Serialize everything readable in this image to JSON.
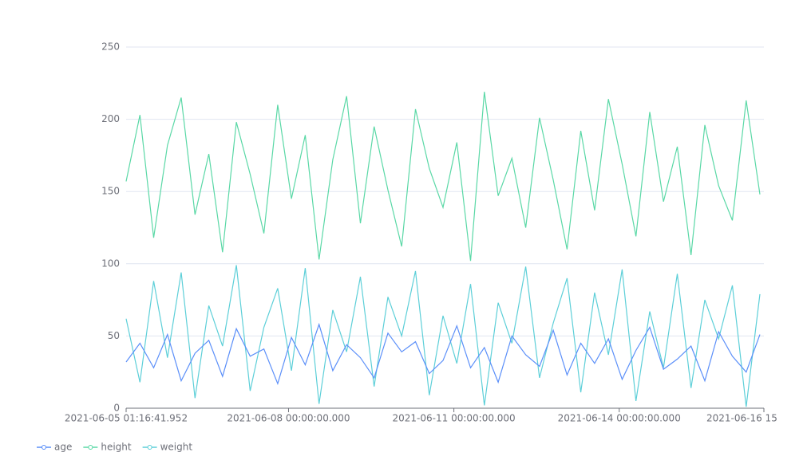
{
  "chart_data": {
    "type": "line",
    "x": [
      1622855801952,
      1622877401952,
      1622899001952,
      1622920601952,
      1622942201952,
      1622963801952,
      1622985401952,
      1623007001952,
      1623028601952,
      1623050201952,
      1623071801952,
      1623093401952,
      1623115001952,
      1623136601952,
      1623158201952,
      1623179801952,
      1623201401952,
      1623223001952,
      1623244601952,
      1623266201952,
      1623287801952,
      1623309401952,
      1623331001952,
      1623352601952,
      1623374201952,
      1623395801952,
      1623417401952,
      1623439001952,
      1623460601952,
      1623482201952,
      1623503801952,
      1623525401952,
      1623547001952,
      1623568601952,
      1623590201952,
      1623611801952,
      1623633401952,
      1623655001952,
      1623676601952,
      1623698201952,
      1623719801952,
      1623741401952,
      1623763001952,
      1623784601952,
      1623806201952,
      1623827801952,
      1623849401952
    ],
    "series": [
      {
        "name": "age",
        "color": "#5b8ff9",
        "values": [
          32,
          45,
          28,
          51,
          19,
          38,
          47,
          22,
          55,
          36,
          41,
          17,
          49,
          30,
          58,
          26,
          44,
          35,
          21,
          52,
          39,
          46,
          24,
          33,
          57,
          28,
          42,
          18,
          50,
          37,
          29,
          54,
          23,
          45,
          31,
          48,
          20,
          40,
          56,
          27,
          34,
          43,
          19,
          53,
          36,
          25,
          51
        ]
      },
      {
        "name": "height",
        "color": "#5ad8a6",
        "values": [
          157,
          203,
          118,
          182,
          215,
          134,
          176,
          108,
          198,
          162,
          121,
          210,
          145,
          189,
          103,
          172,
          216,
          128,
          195,
          151,
          112,
          207,
          166,
          139,
          184,
          102,
          219,
          147,
          173,
          125,
          201,
          158,
          110,
          192,
          137,
          214,
          169,
          119,
          205,
          143,
          181,
          106,
          196,
          154,
          130,
          213,
          148
        ]
      },
      {
        "name": "weight",
        "color": "#5dcfd8",
        "values": [
          62,
          18,
          88,
          35,
          94,
          7,
          71,
          43,
          99,
          12,
          56,
          83,
          26,
          97,
          3,
          68,
          39,
          91,
          15,
          77,
          50,
          95,
          9,
          64,
          31,
          86,
          2,
          73,
          45,
          98,
          21,
          59,
          90,
          11,
          80,
          37,
          96,
          5,
          67,
          28,
          93,
          14,
          75,
          48,
          85,
          1,
          79
        ]
      }
    ],
    "xlim": [
      1622855801952,
      1623855600000
    ],
    "xticks": [
      {
        "value": 1622855801952,
        "label": "2021-06-05 01:16:41.952"
      },
      {
        "value": 1623110400000,
        "label": "2021-06-08 00:00:00.000"
      },
      {
        "value": 1623369600000,
        "label": "2021-06-11 00:00:00.000"
      },
      {
        "value": 1623628800000,
        "label": "2021-06-14 00:00:00.000"
      },
      {
        "value": 1623855600000,
        "label": "2021-06-16 15"
      }
    ],
    "ylim": [
      0,
      250
    ],
    "yticks": [
      0,
      50,
      100,
      150,
      200,
      250
    ],
    "grid": true,
    "legend": "bottom-left"
  }
}
